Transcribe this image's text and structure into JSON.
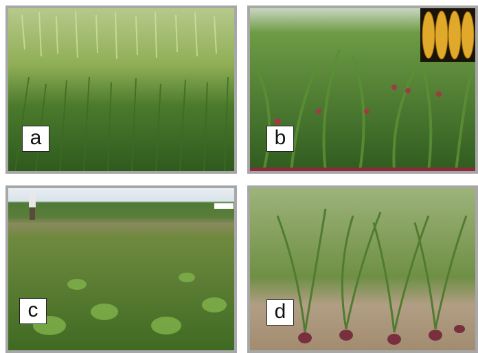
{
  "panels": [
    {
      "id": "a",
      "label": "a",
      "subject": "wheat-field"
    },
    {
      "id": "b",
      "label": "b",
      "subject": "maize-field"
    },
    {
      "id": "c",
      "label": "c",
      "subject": "legume-field"
    },
    {
      "id": "d",
      "label": "d",
      "subject": "onion-field"
    }
  ],
  "colors": {
    "border": "#a7a7a7",
    "wheat": "#8fb24a",
    "maize": "#4f7f2f",
    "legume": "#5d7d30",
    "onion": "#6a8a3b",
    "soil": "#a89478",
    "corn_kernel": "#e0a92a"
  }
}
